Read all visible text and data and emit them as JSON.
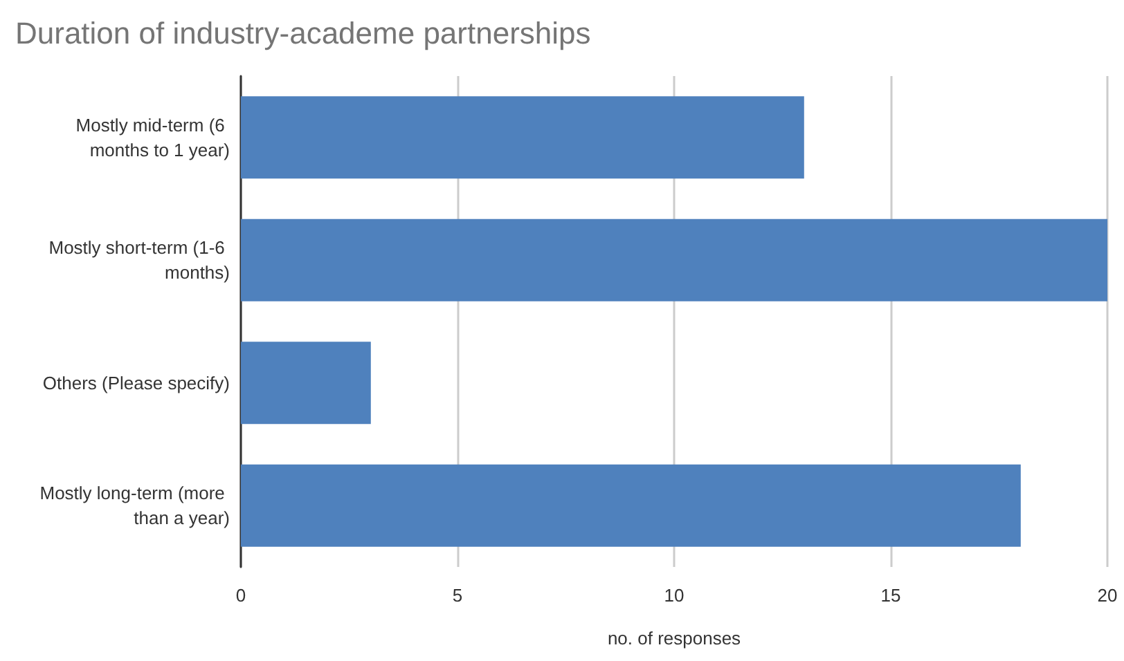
{
  "chart_data": {
    "type": "bar",
    "title": "Duration of industry-academe partnerships",
    "orientation": "horizontal",
    "categories": [
      "Mostly mid-term (6 months to 1 year)",
      "Mostly short-term (1-6 months)",
      "Others (Please specify)",
      "Mostly long-term (more than a year)"
    ],
    "values": [
      13,
      20,
      3,
      18
    ],
    "color": "#4f81bd",
    "xlim": [
      0,
      20
    ],
    "xticks": [
      0,
      5,
      10,
      15,
      20
    ],
    "xlabel": "no. of responses",
    "grid": "x"
  }
}
